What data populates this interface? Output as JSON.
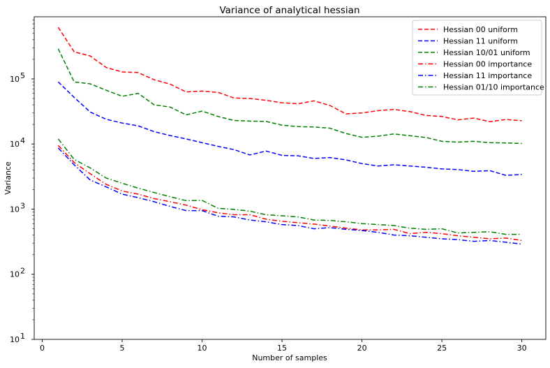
{
  "chart_data": {
    "type": "line",
    "title": "Variance of analytical hessian",
    "xlabel": "Number of samples",
    "ylabel": "Variance",
    "xlim": [
      -0.5,
      31.5
    ],
    "ylim": [
      10,
      900000
    ],
    "yscale": "log",
    "xticks": [
      0,
      5,
      10,
      15,
      20,
      25,
      30
    ],
    "yticks": [
      {
        "value": 10,
        "base": "10",
        "exp": "1"
      },
      {
        "value": 100,
        "base": "10",
        "exp": "2"
      },
      {
        "value": 1000,
        "base": "10",
        "exp": "3"
      },
      {
        "value": 10000,
        "base": "10",
        "exp": "4"
      },
      {
        "value": 100000,
        "base": "10",
        "exp": "5"
      }
    ],
    "legend_position": "top-right",
    "x": [
      1,
      2,
      3,
      4,
      5,
      6,
      7,
      8,
      9,
      10,
      11,
      12,
      13,
      14,
      15,
      16,
      17,
      18,
      19,
      20,
      21,
      22,
      23,
      24,
      25,
      26,
      27,
      28,
      29,
      30
    ],
    "series": [
      {
        "name": "Hessian 00 uniform",
        "color": "#ff0000",
        "dash": "dashed",
        "values": [
          620000,
          260000,
          225000,
          150000,
          128000,
          125000,
          97000,
          83000,
          63000,
          65000,
          62000,
          51000,
          50000,
          47000,
          43000,
          41500,
          46000,
          39000,
          29000,
          30000,
          32500,
          34000,
          31500,
          27500,
          26500,
          23500,
          25000,
          22000,
          23800,
          22800
        ]
      },
      {
        "name": "Hessian 11 uniform",
        "color": "#0000ff",
        "dash": "dashed",
        "values": [
          90000,
          52000,
          31000,
          24000,
          21000,
          19000,
          15500,
          13500,
          12000,
          10500,
          9200,
          8200,
          6800,
          7800,
          6700,
          6600,
          6000,
          6200,
          5700,
          5000,
          4600,
          4800,
          4600,
          4400,
          4150,
          4050,
          3800,
          3900,
          3300,
          3400
        ]
      },
      {
        "name": "Hessian 10/01 uniform",
        "color": "#008000",
        "dash": "dashed",
        "values": [
          290000,
          90000,
          84000,
          67000,
          54000,
          60000,
          40000,
          37000,
          28000,
          32000,
          26500,
          23000,
          22500,
          22200,
          19500,
          18500,
          18300,
          17500,
          14500,
          12700,
          13200,
          14300,
          13400,
          12600,
          11000,
          10700,
          11000,
          10500,
          10400,
          10200
        ]
      },
      {
        "name": "Hessian 00 importance",
        "color": "#ff0000",
        "dash": "dashdot",
        "values": [
          9500,
          5200,
          3500,
          2400,
          1900,
          1700,
          1450,
          1300,
          1150,
          980,
          880,
          820,
          820,
          700,
          650,
          620,
          590,
          550,
          510,
          480,
          480,
          490,
          420,
          440,
          420,
          390,
          370,
          350,
          360,
          330
        ]
      },
      {
        "name": "Hessian 11 importance",
        "color": "#0000ff",
        "dash": "dashdot",
        "values": [
          8700,
          4800,
          2800,
          2200,
          1700,
          1500,
          1300,
          1100,
          950,
          950,
          780,
          760,
          680,
          640,
          580,
          560,
          500,
          520,
          490,
          470,
          440,
          400,
          390,
          370,
          350,
          340,
          320,
          330,
          310,
          290
        ]
      },
      {
        "name": "Hessian 01/10 importance",
        "color": "#008000",
        "dash": "dashdot",
        "values": [
          12000,
          5800,
          4300,
          3000,
          2500,
          2100,
          1800,
          1550,
          1350,
          1360,
          1030,
          990,
          930,
          820,
          790,
          760,
          680,
          670,
          640,
          600,
          580,
          560,
          510,
          490,
          500,
          430,
          440,
          450,
          410,
          410
        ]
      }
    ]
  }
}
